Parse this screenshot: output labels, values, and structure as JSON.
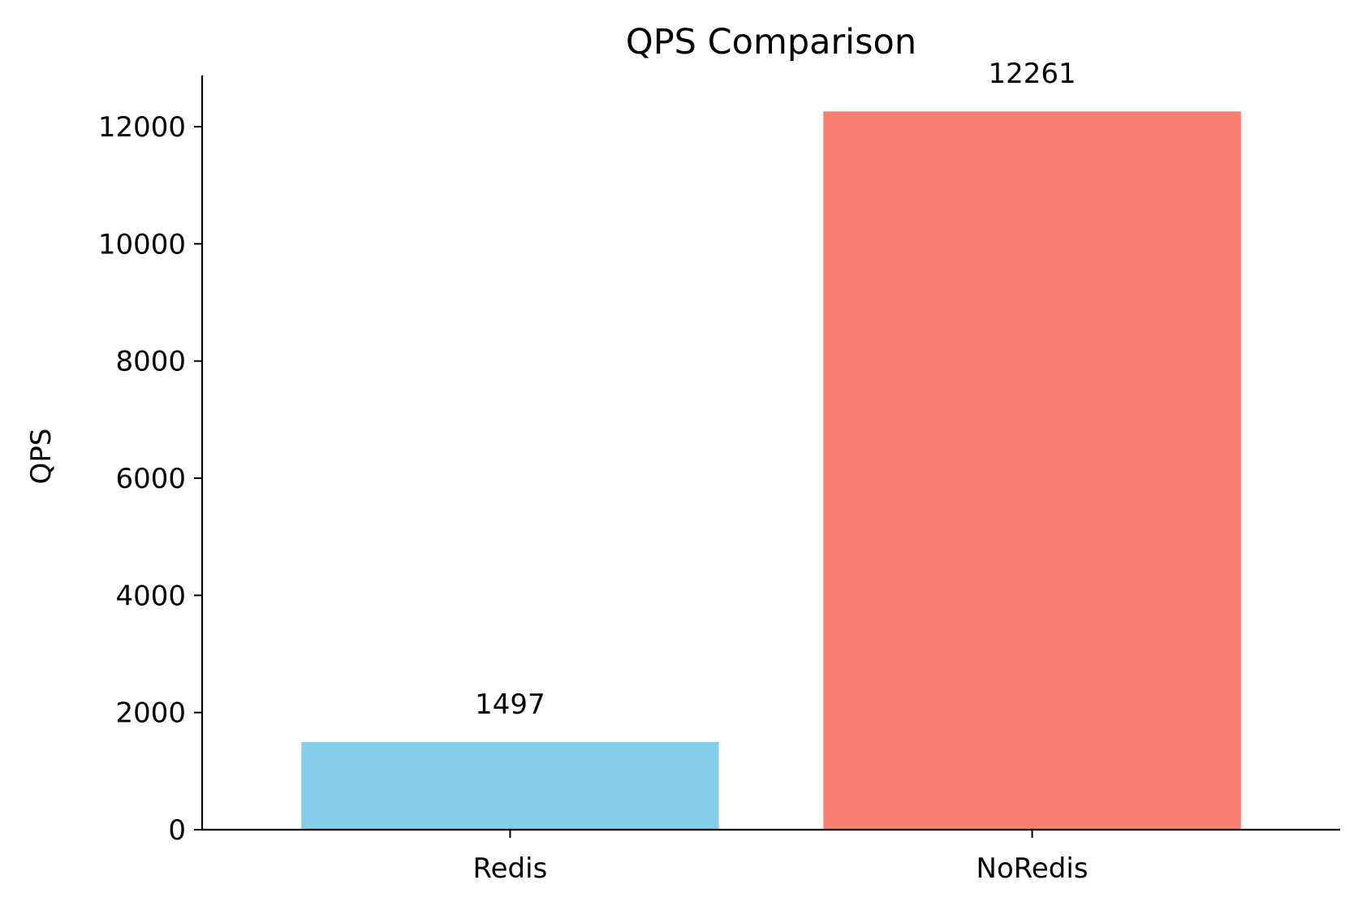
{
  "chart_data": {
    "type": "bar",
    "title": "QPS Comparison",
    "xlabel": "",
    "ylabel": "QPS",
    "categories": [
      "Redis",
      "NoRedis"
    ],
    "values": [
      1497,
      12261
    ],
    "value_labels": [
      "1497",
      "12261"
    ],
    "colors": [
      "#87ceeb",
      "#fa8072"
    ],
    "yticks": [
      0,
      2000,
      4000,
      6000,
      8000,
      10000,
      12000
    ],
    "ylim": [
      0,
      12874
    ],
    "grid": false,
    "legend": "none"
  }
}
